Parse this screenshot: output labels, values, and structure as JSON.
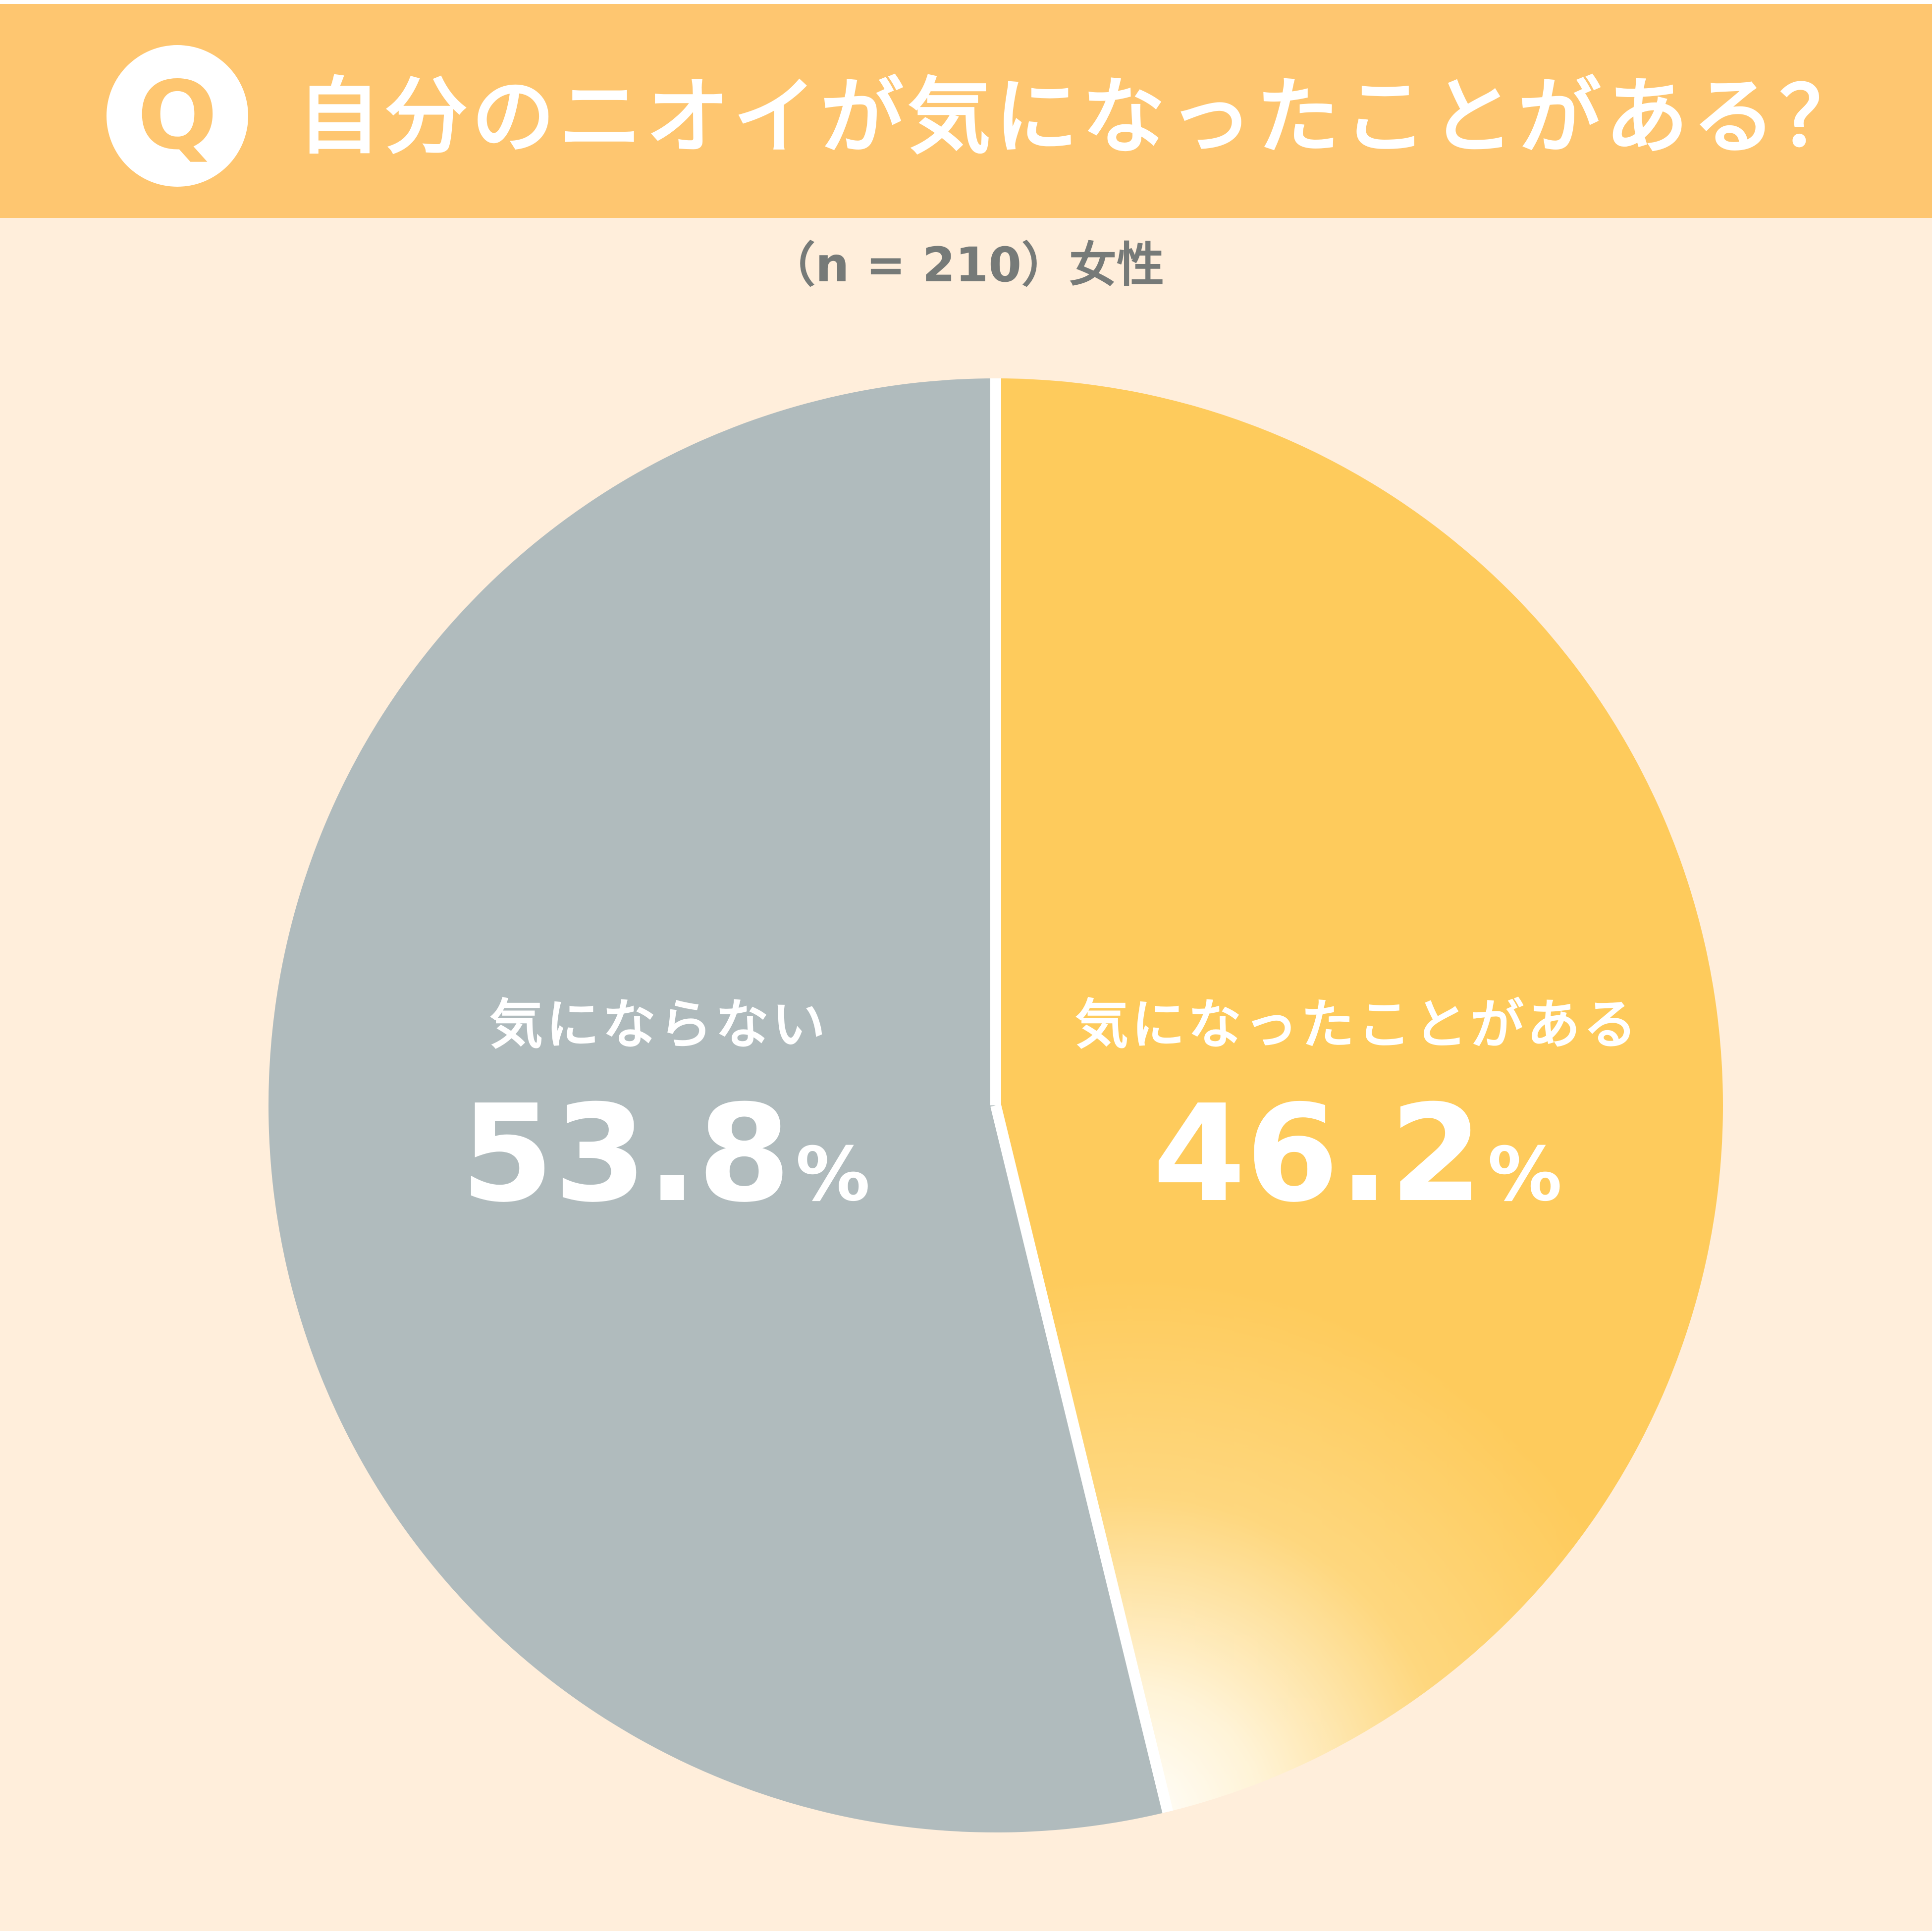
{
  "header": {
    "badge": "Q",
    "title": "自分のニオイが気になったことがある？"
  },
  "subtitle": "（n = 210）女性",
  "colors": {
    "header_bg": "#fec670",
    "page_bg": "#ffeedb",
    "slice_yes": "#fecb5c",
    "slice_no": "#b0bbbd",
    "divider": "#ffffff",
    "subtitle_text": "#767a78"
  },
  "labels": {
    "no": {
      "name": "気にならない",
      "value": "53.8",
      "unit": "%"
    },
    "yes": {
      "name": "気になったことがある",
      "value": "46.2",
      "unit": "%"
    }
  },
  "chart_data": {
    "type": "pie",
    "title": "自分のニオイが気になったことがある？",
    "subtitle": "（n = 210）女性",
    "categories": [
      "気になったことがある",
      "気にならない"
    ],
    "values": [
      46.2,
      53.8
    ],
    "unit": "%",
    "sample_size": 210,
    "start_angle": "12 o'clock",
    "direction": "clockwise",
    "colors": [
      "#fecb5c",
      "#b0bbbd"
    ],
    "legend": "none (labels drawn inside slices)"
  }
}
